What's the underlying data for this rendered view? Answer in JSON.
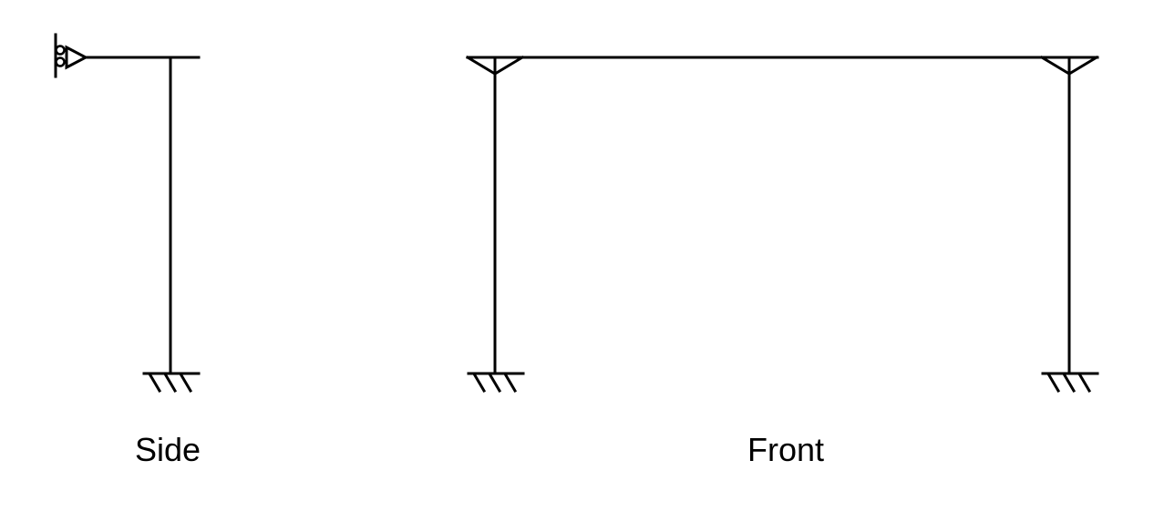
{
  "views": {
    "side": {
      "label": "Side"
    },
    "front": {
      "label": "Front"
    }
  },
  "colors": {
    "stroke": "#000000",
    "background": "#ffffff",
    "text": "#000000"
  }
}
